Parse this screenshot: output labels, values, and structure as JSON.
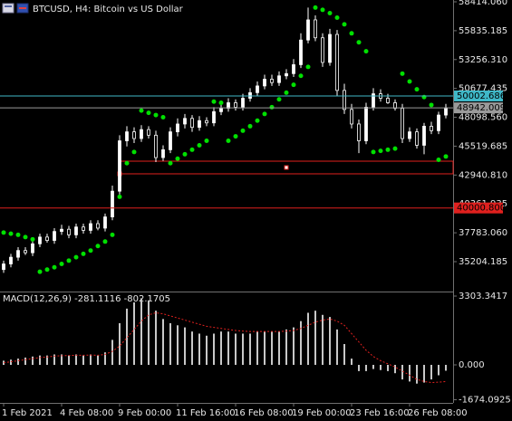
{
  "chart_data": {
    "type": "candlestick",
    "title": "BTCUSD, H4:  Bitcoin vs US Dollar",
    "categories": [
      "1 Feb 2021",
      null,
      null,
      null,
      null,
      null,
      null,
      null,
      "4 Feb 08:00",
      null,
      null,
      null,
      null,
      null,
      null,
      null,
      "9 Feb 00:00",
      null,
      null,
      null,
      null,
      null,
      null,
      null,
      "11 Feb 16:00",
      null,
      null,
      null,
      null,
      null,
      null,
      null,
      "16 Feb 08:00",
      null,
      null,
      null,
      null,
      null,
      null,
      null,
      "19 Feb 00:00",
      null,
      null,
      null,
      null,
      null,
      null,
      null,
      "23 Feb 16:00",
      null,
      null,
      null,
      null,
      null,
      null,
      null,
      "26 Feb 08:00",
      null,
      null,
      null,
      null,
      null
    ],
    "open": [
      34500,
      35000,
      35600,
      36200,
      36000,
      36800,
      37400,
      37100,
      37900,
      38100,
      37600,
      38300,
      38000,
      38600,
      38200,
      39200,
      41500,
      46000,
      46800,
      46200,
      47000,
      46500,
      44500,
      45200,
      46800,
      47500,
      48000,
      47200,
      47800,
      47600,
      48600,
      48900,
      49400,
      49000,
      49800,
      50300,
      50900,
      51500,
      51200,
      51800,
      52000,
      52800,
      55000,
      56800,
      55200,
      53000,
      55500,
      50500,
      48800,
      47500,
      46000,
      49000,
      50200,
      49800,
      49400,
      48900,
      46200,
      46800,
      45600,
      47300,
      46900,
      48300
    ],
    "high": [
      35300,
      35900,
      36500,
      36500,
      37100,
      37700,
      37700,
      38200,
      38500,
      38400,
      38600,
      38600,
      38900,
      38900,
      39500,
      42000,
      46500,
      47300,
      47200,
      47400,
      47300,
      46900,
      45600,
      47200,
      48000,
      48400,
      48300,
      48200,
      48100,
      49000,
      49300,
      49800,
      49700,
      50200,
      50700,
      51300,
      51900,
      51900,
      52200,
      52400,
      53300,
      55600,
      57900,
      57200,
      55600,
      56000,
      55900,
      51100,
      49300,
      47900,
      49400,
      50700,
      50600,
      50200,
      49700,
      49300,
      47200,
      47100,
      47600,
      47700,
      48600,
      49300
    ],
    "low": [
      34200,
      34700,
      35300,
      35800,
      35700,
      36500,
      36900,
      36800,
      37600,
      37300,
      37300,
      37700,
      37700,
      38000,
      37900,
      38900,
      41200,
      45500,
      45800,
      45900,
      46200,
      44100,
      44200,
      44900,
      46400,
      47100,
      46800,
      46900,
      47300,
      47300,
      48300,
      48600,
      48700,
      48700,
      49500,
      50000,
      50600,
      50900,
      50900,
      51500,
      51700,
      52500,
      54700,
      54900,
      52600,
      52700,
      50000,
      48400,
      47100,
      44900,
      45700,
      48700,
      49500,
      49300,
      48700,
      45800,
      45900,
      45300,
      44800,
      46600,
      46600,
      48000
    ],
    "close": [
      35000,
      35600,
      36200,
      36000,
      36800,
      37400,
      37100,
      37900,
      38100,
      37600,
      38300,
      38000,
      38600,
      38200,
      39200,
      41500,
      46000,
      46800,
      46200,
      47000,
      46500,
      44500,
      45200,
      46800,
      47500,
      48000,
      47200,
      47800,
      47600,
      48600,
      48900,
      49400,
      49000,
      49800,
      50300,
      50900,
      51500,
      51200,
      51800,
      52000,
      52800,
      55000,
      56800,
      55200,
      53000,
      55500,
      50500,
      48800,
      47500,
      46000,
      49000,
      50200,
      49800,
      49400,
      48900,
      46200,
      46800,
      45600,
      47300,
      46900,
      48300,
      48940
    ],
    "up_color": "#ffffff",
    "down_color": "#000000",
    "wick_color": "#ffffff",
    "sar": {
      "color": "#00e000",
      "values": [
        37800,
        37700,
        37600,
        37400,
        37200,
        34300,
        34500,
        34700,
        35000,
        35300,
        35600,
        35900,
        36200,
        36600,
        37000,
        37600,
        41000,
        44000,
        45000,
        48700,
        48500,
        48300,
        48100,
        44000,
        44400,
        44800,
        45200,
        45600,
        46000,
        49500,
        49400,
        46000,
        46400,
        46900,
        47300,
        47800,
        48400,
        49000,
        49700,
        50300,
        51000,
        51800,
        52600,
        57900,
        57700,
        57400,
        57000,
        56400,
        55600,
        54800,
        54000,
        45000,
        45100,
        45200,
        45300,
        52000,
        51300,
        50600,
        49900,
        49200,
        44300,
        44600
      ]
    },
    "ylim": [
      32536,
      58576
    ],
    "yticks": [
      {
        "value": 58414.06,
        "label": "58414.060"
      },
      {
        "value": 55835.185,
        "label": "55835.185"
      },
      {
        "value": 53256.31,
        "label": "53256.310"
      },
      {
        "value": 50677.435,
        "label": "50677.435"
      },
      {
        "value": 48098.56,
        "label": "48098.560"
      },
      {
        "value": 45519.685,
        "label": "45519.685"
      },
      {
        "value": 42940.81,
        "label": "42940.810"
      },
      {
        "value": 40361.935,
        "label": "40361.935"
      },
      {
        "value": 37783.06,
        "label": "37783.060"
      },
      {
        "value": 35204.185,
        "label": "35204.185"
      }
    ],
    "hlines": [
      {
        "value": 50002.686,
        "label": "50002.686",
        "color": "#3fb8c8"
      },
      {
        "value": 48942.009,
        "label": "48942.009",
        "color": "#9a9a9a"
      },
      {
        "value": 40000.8,
        "label": "40000.800",
        "color": "#e0201e"
      }
    ],
    "rectangle": {
      "start": 16,
      "top": 44180,
      "bottom": 43050,
      "color": "#e0201e"
    },
    "macd": {
      "label": "MACD(12,26,9) -281.1116 -802.1705",
      "histogram_color": "#c8c8c8",
      "signal_color": "#e0201e",
      "histogram": [
        200,
        250,
        300,
        350,
        400,
        450,
        450,
        500,
        500,
        450,
        500,
        450,
        500,
        450,
        600,
        1200,
        2000,
        2700,
        3000,
        3200,
        3100,
        2600,
        2200,
        2000,
        1900,
        1800,
        1600,
        1500,
        1400,
        1500,
        1600,
        1600,
        1500,
        1500,
        1500,
        1600,
        1600,
        1600,
        1600,
        1700,
        1800,
        2100,
        2500,
        2600,
        2400,
        2300,
        1700,
        1000,
        300,
        -300,
        -300,
        -200,
        -250,
        -300,
        -400,
        -700,
        -800,
        -900,
        -850,
        -700,
        -500,
        -281.1116
      ],
      "signal": [
        100,
        150,
        200,
        250,
        300,
        350,
        380,
        420,
        440,
        450,
        460,
        460,
        470,
        460,
        500,
        650,
        900,
        1300,
        1700,
        2100,
        2400,
        2500,
        2450,
        2350,
        2250,
        2150,
        2050,
        1950,
        1850,
        1800,
        1750,
        1700,
        1650,
        1620,
        1600,
        1600,
        1600,
        1600,
        1600,
        1620,
        1650,
        1750,
        1900,
        2050,
        2150,
        2200,
        2100,
        1900,
        1500,
        1100,
        700,
        400,
        200,
        50,
        -100,
        -300,
        -500,
        -700,
        -800,
        -850,
        -830,
        -802.1705
      ],
      "ylim": [
        -1826,
        3477
      ],
      "yticks": [
        {
          "value": 3303.3417,
          "label": "3303.3417"
        },
        {
          "value": 0,
          "label": "0.000"
        },
        {
          "value": -1674.0925,
          "label": "-1674.0925"
        }
      ]
    }
  }
}
